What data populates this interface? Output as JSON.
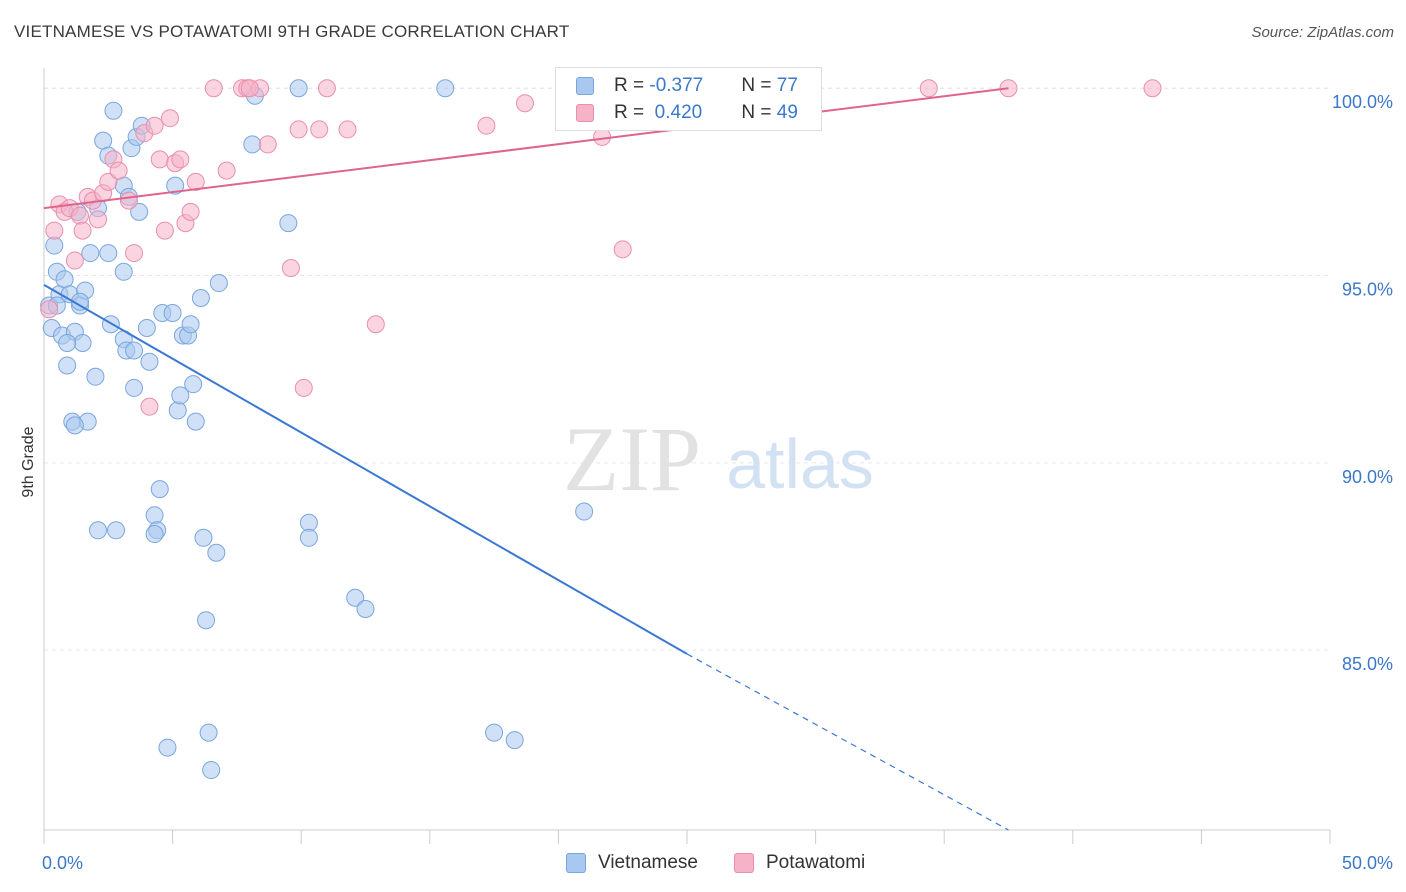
{
  "header": {
    "title": "VIETNAMESE VS POTAWATOMI 9TH GRADE CORRELATION CHART",
    "source": "Source: ZipAtlas.com"
  },
  "watermark": {
    "zip": "ZIP",
    "atlas": "atlas"
  },
  "legend": {
    "rows": [
      {
        "r_label": "R = ",
        "r_value": "-0.377",
        "n_label": "N = ",
        "n_value": "77",
        "color": "#a9c8f0"
      },
      {
        "r_label": "R = ",
        "r_value": " 0.420",
        "n_label": "N = ",
        "n_value": "49",
        "color": "#f6b3c8"
      }
    ]
  },
  "bottom_legend": {
    "items": [
      "Vietnamese",
      "Potawatomi"
    ]
  },
  "chart_data": {
    "type": "scatter",
    "title": "VIETNAMESE VS POTAWATOMI 9TH GRADE CORRELATION CHART",
    "xlabel": "",
    "ylabel": "9th Grade",
    "xlim": [
      0,
      50
    ],
    "ylim": [
      80.2,
      100.7
    ],
    "x_tick_labels": [
      "0.0%",
      "50.0%"
    ],
    "y_ticks": [
      85,
      90,
      95,
      100
    ],
    "y_tick_labels": [
      "85.0%",
      "90.0%",
      "95.0%",
      "100.0%"
    ],
    "grid": true,
    "legend_position": "top-center",
    "series": [
      {
        "name": "Vietnamese",
        "color": "#a9c8f0",
        "stroke": "#7aa6de",
        "trend_color": "#3a78d4",
        "trend": {
          "x0": 0.0,
          "y0": 94.75,
          "x1": 25.0,
          "y1": 84.9,
          "dash_to_x": 37.5,
          "dash_to_y": 80.2
        },
        "points": [
          [
            0.2,
            94.2
          ],
          [
            0.3,
            93.6
          ],
          [
            0.4,
            95.8
          ],
          [
            0.5,
            95.1
          ],
          [
            0.6,
            94.5
          ],
          [
            0.7,
            93.4
          ],
          [
            0.8,
            94.9
          ],
          [
            0.9,
            92.6
          ],
          [
            1.0,
            94.5
          ],
          [
            1.1,
            91.1
          ],
          [
            1.2,
            93.5
          ],
          [
            1.3,
            96.7
          ],
          [
            1.4,
            94.2
          ],
          [
            1.5,
            93.2
          ],
          [
            1.6,
            94.6
          ],
          [
            1.7,
            91.1
          ],
          [
            1.8,
            95.6
          ],
          [
            2.0,
            92.3
          ],
          [
            2.1,
            96.8
          ],
          [
            2.3,
            98.6
          ],
          [
            2.5,
            95.6
          ],
          [
            2.5,
            98.2
          ],
          [
            2.7,
            99.4
          ],
          [
            3.1,
            97.4
          ],
          [
            3.1,
            93.3
          ],
          [
            3.1,
            95.1
          ],
          [
            3.2,
            93.0
          ],
          [
            3.3,
            97.1
          ],
          [
            3.4,
            98.4
          ],
          [
            3.5,
            92.0
          ],
          [
            3.6,
            98.7
          ],
          [
            3.7,
            96.7
          ],
          [
            3.8,
            99.0
          ],
          [
            4.0,
            93.6
          ],
          [
            4.1,
            92.7
          ],
          [
            4.3,
            88.6
          ],
          [
            4.4,
            88.2
          ],
          [
            4.5,
            89.3
          ],
          [
            4.6,
            94.0
          ],
          [
            4.8,
            82.4
          ],
          [
            5.0,
            94.0
          ],
          [
            5.1,
            97.4
          ],
          [
            5.2,
            91.4
          ],
          [
            5.3,
            91.8
          ],
          [
            5.4,
            93.4
          ],
          [
            5.6,
            93.4
          ],
          [
            5.7,
            93.7
          ],
          [
            5.8,
            92.1
          ],
          [
            5.9,
            91.1
          ],
          [
            6.1,
            94.4
          ],
          [
            6.2,
            88.0
          ],
          [
            6.3,
            85.8
          ],
          [
            6.4,
            82.8
          ],
          [
            6.5,
            81.8
          ],
          [
            6.7,
            87.6
          ],
          [
            6.8,
            94.8
          ],
          [
            8.1,
            98.5
          ],
          [
            8.2,
            99.8
          ],
          [
            9.5,
            96.4
          ],
          [
            9.9,
            100.0
          ],
          [
            10.3,
            88.4
          ],
          [
            10.3,
            88.0
          ],
          [
            12.1,
            86.4
          ],
          [
            12.5,
            86.1
          ],
          [
            15.6,
            100.0
          ],
          [
            17.5,
            82.8
          ],
          [
            18.3,
            82.6
          ],
          [
            21.0,
            88.7
          ],
          [
            2.1,
            88.2
          ],
          [
            2.8,
            88.2
          ],
          [
            4.3,
            88.1
          ],
          [
            1.2,
            91.0
          ],
          [
            0.9,
            93.2
          ],
          [
            2.6,
            93.7
          ],
          [
            3.5,
            93.0
          ],
          [
            0.5,
            94.2
          ],
          [
            1.4,
            94.3
          ]
        ]
      },
      {
        "name": "Potawatomi",
        "color": "#f6b3c8",
        "stroke": "#e98fab",
        "trend_color": "#e0648c",
        "trend": {
          "x0": 0.0,
          "y0": 96.8,
          "x1": 37.5,
          "y1": 100.0
        },
        "points": [
          [
            0.2,
            94.1
          ],
          [
            0.4,
            96.2
          ],
          [
            0.6,
            96.9
          ],
          [
            0.8,
            96.7
          ],
          [
            1.0,
            96.8
          ],
          [
            1.2,
            95.4
          ],
          [
            1.4,
            96.6
          ],
          [
            1.5,
            96.2
          ],
          [
            1.7,
            97.1
          ],
          [
            1.9,
            97.0
          ],
          [
            2.1,
            96.5
          ],
          [
            2.3,
            97.2
          ],
          [
            2.5,
            97.5
          ],
          [
            2.7,
            98.1
          ],
          [
            2.9,
            97.8
          ],
          [
            3.3,
            97.0
          ],
          [
            3.5,
            95.6
          ],
          [
            3.9,
            98.8
          ],
          [
            4.1,
            91.5
          ],
          [
            4.3,
            99.0
          ],
          [
            4.5,
            98.1
          ],
          [
            4.7,
            96.2
          ],
          [
            4.9,
            99.2
          ],
          [
            5.1,
            98.0
          ],
          [
            5.3,
            98.1
          ],
          [
            5.5,
            96.4
          ],
          [
            5.7,
            96.7
          ],
          [
            5.9,
            97.5
          ],
          [
            6.6,
            100.0
          ],
          [
            7.1,
            97.8
          ],
          [
            7.7,
            100.0
          ],
          [
            7.9,
            100.0
          ],
          [
            8.4,
            100.0
          ],
          [
            8.7,
            98.5
          ],
          [
            9.6,
            95.2
          ],
          [
            9.9,
            98.9
          ],
          [
            10.1,
            92.0
          ],
          [
            10.7,
            98.9
          ],
          [
            11.0,
            100.0
          ],
          [
            11.8,
            98.9
          ],
          [
            12.9,
            93.7
          ],
          [
            17.2,
            99.0
          ],
          [
            18.7,
            99.6
          ],
          [
            21.7,
            98.7
          ],
          [
            22.5,
            95.7
          ],
          [
            34.4,
            100.0
          ],
          [
            37.5,
            100.0
          ],
          [
            43.1,
            100.0
          ],
          [
            8.0,
            100.0
          ]
        ]
      }
    ]
  }
}
